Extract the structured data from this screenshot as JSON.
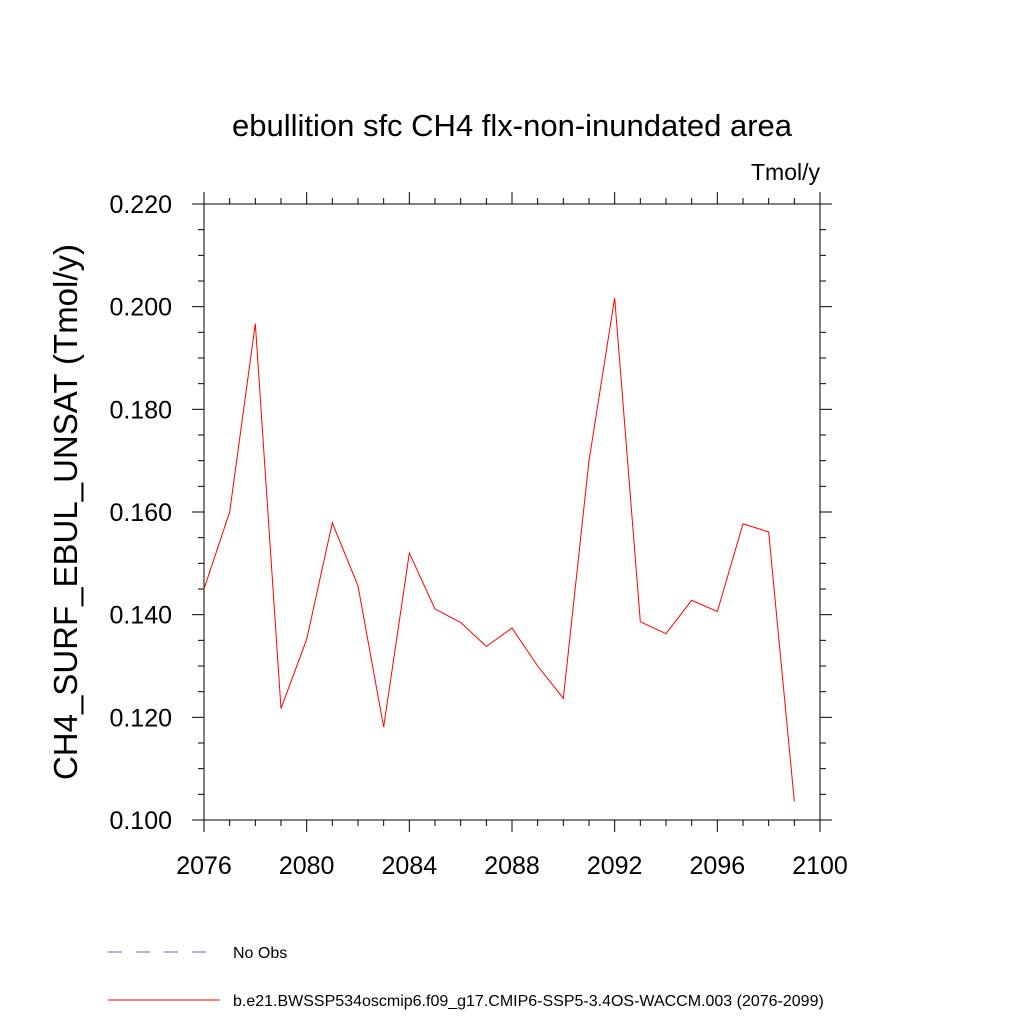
{
  "chart_data": {
    "type": "line",
    "title": "ebullition sfc CH4 flx-non-inundated area",
    "units": "Tmol/y",
    "ylabel": "CH4_SURF_EBUL_UNSAT  (Tmol/y)",
    "xlabel": "",
    "xlim": [
      2076,
      2100
    ],
    "ylim": [
      0.1,
      0.22
    ],
    "x_ticks": [
      2076,
      2080,
      2084,
      2088,
      2092,
      2096,
      2100
    ],
    "x_tick_labels": [
      "2076",
      "2080",
      "2084",
      "2088",
      "2092",
      "2096",
      "2100"
    ],
    "y_ticks": [
      0.1,
      0.12,
      0.14,
      0.16,
      0.18,
      0.2,
      0.22
    ],
    "y_tick_labels": [
      "0.100",
      "0.120",
      "0.140",
      "0.160",
      "0.180",
      "0.200",
      "0.220"
    ],
    "series": [
      {
        "name": "b.e21.BWSSP534oscmip6.f09_g17.CMIP6-SSP5-3.4OS-WACCM.003 (2076-2099)",
        "color": "#ff0000",
        "x": [
          2076,
          2077,
          2078,
          2079,
          2080,
          2081,
          2082,
          2083,
          2084,
          2085,
          2086,
          2087,
          2088,
          2089,
          2090,
          2091,
          2092,
          2093,
          2094,
          2095,
          2096,
          2097,
          2098,
          2099
        ],
        "values": [
          0.145,
          0.16,
          0.1967,
          0.1217,
          0.1352,
          0.1579,
          0.1456,
          0.1181,
          0.152,
          0.1411,
          0.1385,
          0.1338,
          0.1374,
          0.13,
          0.1237,
          0.17,
          0.2017,
          0.1386,
          0.1363,
          0.1428,
          0.1406,
          0.1577,
          0.1561,
          0.1036
        ]
      }
    ],
    "legend": [
      {
        "label": "No Obs",
        "color": "#6a5acd",
        "style": "dashed"
      },
      {
        "label": "b.e21.BWSSP534oscmip6.f09_g17.CMIP6-SSP5-3.4OS-WACCM.003 (2076-2099)",
        "color": "#ff0000",
        "style": "solid"
      }
    ],
    "legend_position": "bottom-left"
  }
}
